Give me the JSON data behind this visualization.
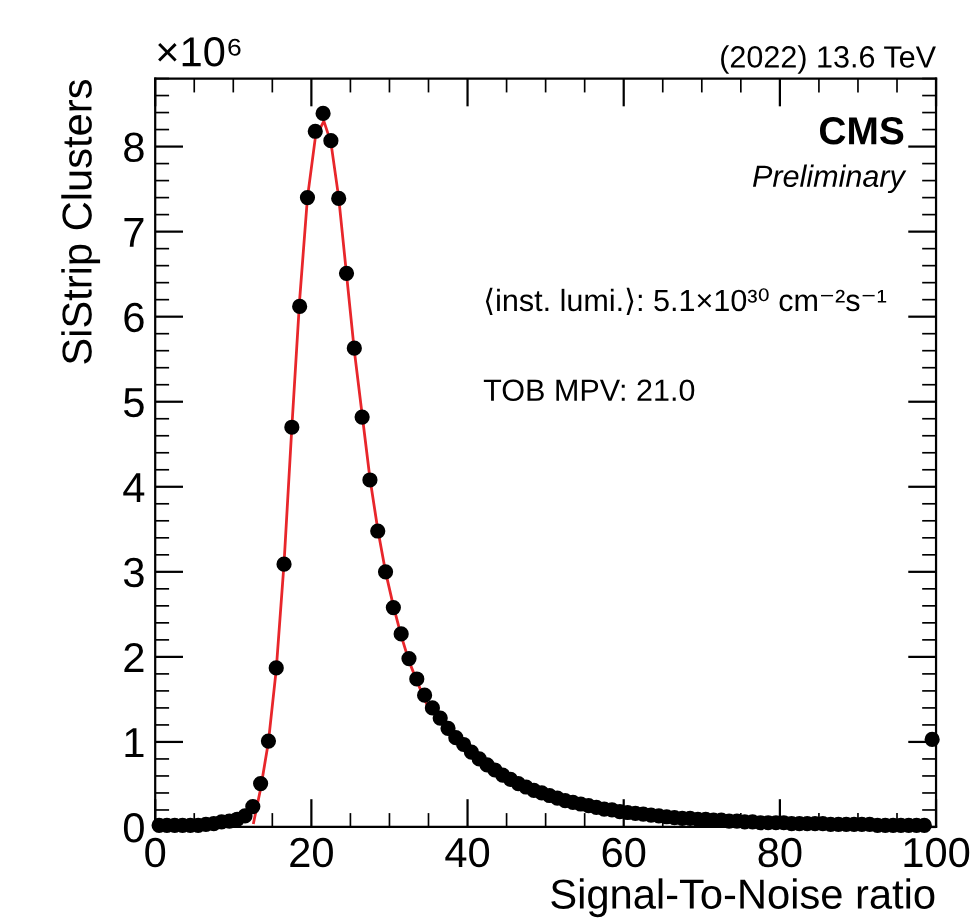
{
  "chart_data": {
    "type": "scatter",
    "title": "(2022) 13.6 TeV",
    "xlabel": "Signal-To-Noise ratio",
    "ylabel": "SiStrip Clusters",
    "annotations": [
      "×10⁶",
      "CMS",
      "Preliminary",
      "⟨inst. lumi.⟩: 5.1×10³⁰ cm⁻²s⁻¹",
      "TOB MPV: 21.0"
    ],
    "series": [
      {
        "color": "#000000",
        "marker": "circle",
        "x": [
          0.5,
          1.5,
          2.5,
          3.5,
          4.5,
          5.5,
          6.5,
          7.5,
          8.5,
          9.5,
          10.5,
          11.5,
          12.5,
          13.5,
          14.5,
          15.5,
          16.5,
          17.5,
          18.5,
          19.5,
          20.5,
          21.5,
          22.5,
          23.5,
          24.5,
          25.5,
          26.5,
          27.5,
          28.5,
          29.5,
          30.5,
          31.5,
          32.5,
          33.5,
          34.5,
          35.5,
          36.5,
          37.5,
          38.5,
          39.5,
          40.5,
          41.5,
          42.5,
          43.5,
          44.5,
          45.5,
          46.5,
          47.5,
          48.5,
          49.5,
          50.5,
          51.5,
          52.5,
          53.5,
          54.5,
          55.5,
          56.5,
          57.5,
          58.5,
          59.5,
          60.5,
          61.5,
          62.5,
          63.5,
          64.5,
          65.5,
          66.5,
          67.5,
          68.5,
          69.5,
          70.5,
          71.5,
          72.5,
          73.5,
          74.5,
          75.5,
          76.5,
          77.5,
          78.5,
          79.5,
          80.5,
          81.5,
          82.5,
          83.5,
          84.5,
          85.5,
          86.5,
          87.5,
          88.5,
          89.5,
          90.5,
          91.5,
          92.5,
          93.5,
          94.5,
          95.5,
          96.5,
          97.5,
          98.5,
          99.5
        ],
        "values": [
          0.02,
          0.02,
          0.02,
          0.02,
          0.02,
          0.02,
          0.03,
          0.04,
          0.06,
          0.07,
          0.09,
          0.13,
          0.24,
          0.51,
          1.01,
          1.87,
          3.09,
          4.7,
          6.12,
          7.4,
          8.18,
          8.39,
          8.07,
          7.39,
          6.51,
          5.63,
          4.82,
          4.08,
          3.48,
          3.0,
          2.58,
          2.27,
          1.98,
          1.74,
          1.55,
          1.4,
          1.28,
          1.16,
          1.05,
          0.97,
          0.88,
          0.8,
          0.73,
          0.67,
          0.61,
          0.56,
          0.51,
          0.47,
          0.43,
          0.4,
          0.37,
          0.34,
          0.31,
          0.29,
          0.27,
          0.25,
          0.23,
          0.21,
          0.2,
          0.18,
          0.17,
          0.16,
          0.15,
          0.14,
          0.13,
          0.12,
          0.11,
          0.1,
          0.1,
          0.09,
          0.09,
          0.08,
          0.08,
          0.07,
          0.07,
          0.06,
          0.06,
          0.05,
          0.05,
          0.05,
          0.05,
          0.04,
          0.04,
          0.04,
          0.04,
          0.04,
          0.03,
          0.03,
          0.03,
          0.03,
          0.03,
          0.03,
          0.02,
          0.02,
          0.02,
          0.02,
          0.02,
          0.02,
          0.02,
          1.03
        ]
      },
      {
        "type": "line",
        "color": "#e8262b",
        "marker": "none",
        "x": [
          12.6,
          13.5,
          14.5,
          15.5,
          16.5,
          17.5,
          18.5,
          19.5,
          20.5,
          21.6,
          22.5,
          23.5,
          24.5,
          25.5,
          26.5,
          27.5,
          28.5,
          29.5,
          30.5,
          31.5,
          32.5,
          33.5,
          34.5,
          35.0
        ],
        "values": [
          0.05,
          0.45,
          1.0,
          1.85,
          3.1,
          4.7,
          6.2,
          7.4,
          8.1,
          8.3,
          8.05,
          7.4,
          6.5,
          5.6,
          4.85,
          4.1,
          3.5,
          3.0,
          2.6,
          2.25,
          1.95,
          1.72,
          1.5,
          1.4
        ]
      }
    ],
    "xlim": [
      0,
      100
    ],
    "xticks": [
      0,
      20,
      40,
      60,
      80,
      100
    ],
    "ylim": [
      0,
      8.8
    ],
    "yticks": [
      0,
      1,
      2,
      3,
      4,
      5,
      6,
      7,
      8
    ],
    "grid": false,
    "legend": false
  }
}
